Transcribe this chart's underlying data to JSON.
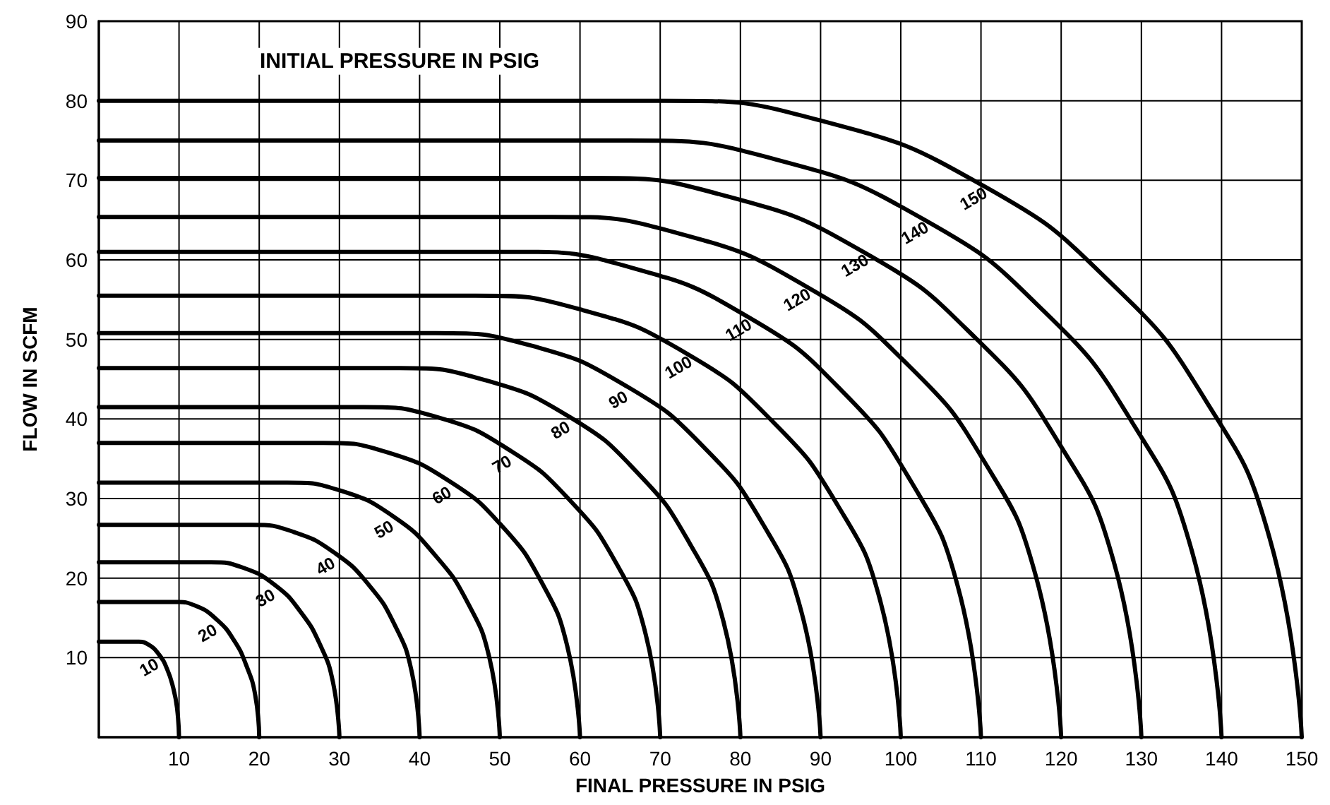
{
  "chart_data": {
    "type": "line",
    "xlabel": "FINAL PRESSURE IN PSIG",
    "ylabel": "FLOW IN SCFM",
    "xlim": [
      0,
      150
    ],
    "xticks": [
      10,
      20,
      30,
      40,
      50,
      60,
      70,
      80,
      90,
      100,
      110,
      120,
      130,
      140,
      150
    ],
    "ylim": [
      0,
      90
    ],
    "yticks": [
      10,
      20,
      30,
      40,
      50,
      60,
      70,
      80,
      90
    ],
    "grid": true,
    "marker": "none",
    "line_style": "solid",
    "series": [
      {
        "color": "#000000",
        "x": [
          0,
          5,
          6.25,
          7.5,
          8.5,
          9.25,
          9.75,
          10
        ],
        "values": [
          12,
          12,
          11.6,
          10.4,
          8.6,
          6.3,
          3.7,
          0
        ]
      },
      {
        "color": "#000000",
        "x": [
          0,
          9.5,
          12.1,
          14.8,
          16.9,
          18.4,
          19.5,
          20
        ],
        "values": [
          17,
          17,
          16.5,
          14.7,
          12.1,
          9,
          5.3,
          0
        ]
      },
      {
        "color": "#000000",
        "x": [
          0,
          14,
          18,
          22,
          25.2,
          27.6,
          29.2,
          30
        ],
        "values": [
          22,
          22,
          21.3,
          19.1,
          15.7,
          11.6,
          6.9,
          0
        ]
      },
      {
        "color": "#000000",
        "x": [
          0,
          19,
          24.3,
          29.5,
          33.7,
          36.9,
          39,
          40
        ],
        "values": [
          26.7,
          26.7,
          25.8,
          23.1,
          19.1,
          14.1,
          8.3,
          0
        ]
      },
      {
        "color": "#000000",
        "x": [
          0,
          23.5,
          30.1,
          36.8,
          42,
          46,
          48.7,
          50
        ],
        "values": [
          32,
          32,
          31,
          27.7,
          22.8,
          16.9,
          10,
          0
        ]
      },
      {
        "color": "#000000",
        "x": [
          0,
          28,
          36,
          44,
          50.4,
          55.2,
          58.4,
          60
        ],
        "values": [
          37,
          37,
          35.8,
          32,
          26.4,
          19.5,
          11.5,
          0
        ]
      },
      {
        "color": "#000000",
        "x": [
          0,
          33,
          42.3,
          51.5,
          58.9,
          64.5,
          68.2,
          70
        ],
        "values": [
          41.5,
          41.5,
          40.2,
          35.9,
          29.6,
          21.9,
          12.9,
          0
        ]
      },
      {
        "color": "#000000",
        "x": [
          0,
          37.5,
          48.1,
          58.8,
          67.3,
          73.6,
          77.9,
          80
        ],
        "values": [
          46.4,
          46.4,
          44.9,
          40.2,
          33.1,
          24.5,
          14.5,
          0
        ]
      },
      {
        "color": "#000000",
        "x": [
          0,
          42,
          54,
          66,
          75.6,
          82.8,
          87.6,
          90
        ],
        "values": [
          50.8,
          50.8,
          49.2,
          44,
          36.3,
          26.8,
          15.8,
          0
        ]
      },
      {
        "color": "#000000",
        "x": [
          0,
          47,
          60.3,
          73.5,
          84.1,
          92.1,
          97.4,
          100
        ],
        "values": [
          55.5,
          55.5,
          53.7,
          48.1,
          39.6,
          29.2,
          17.3,
          0
        ]
      },
      {
        "color": "#000000",
        "x": [
          0,
          52,
          66.5,
          81,
          92.6,
          101.3,
          107.1,
          110
        ],
        "values": [
          61,
          61,
          59,
          52.8,
          43.6,
          32.1,
          19,
          0
        ]
      },
      {
        "color": "#000000",
        "x": [
          0,
          56.5,
          72.4,
          88.3,
          101,
          110.5,
          116.8,
          120
        ],
        "values": [
          65.4,
          65.4,
          63.3,
          56.6,
          46.7,
          34.5,
          20.4,
          0
        ]
      },
      {
        "color": "#000000",
        "x": [
          0,
          61,
          78.3,
          95.5,
          109.3,
          119.7,
          126.6,
          130
        ],
        "values": [
          70.3,
          70.3,
          68,
          60.9,
          50.2,
          37,
          21.9,
          0
        ]
      },
      {
        "color": "#000000",
        "x": [
          0,
          66,
          84.5,
          103,
          117.8,
          128.9,
          136.3,
          140
        ],
        "values": [
          75,
          75,
          72.6,
          65,
          53.6,
          39.5,
          23.4,
          0
        ]
      },
      {
        "color": "#000000",
        "x": [
          0,
          70.5,
          90.4,
          110.3,
          126.2,
          138.1,
          146,
          150
        ],
        "values": [
          80,
          80,
          77.4,
          69.3,
          57.1,
          42.2,
          25,
          0
        ]
      }
    ],
    "annotations": [
      {
        "text": "10",
        "x": 7.5,
        "y": 10.4
      },
      {
        "text": "20",
        "x": 14.8,
        "y": 14.7
      },
      {
        "text": "30",
        "x": 22,
        "y": 19.1
      },
      {
        "text": "40",
        "x": 29.5,
        "y": 23.1
      },
      {
        "text": "50",
        "x": 36.8,
        "y": 27.7
      },
      {
        "text": "60",
        "x": 44,
        "y": 32
      },
      {
        "text": "70",
        "x": 51.5,
        "y": 35.9
      },
      {
        "text": "80",
        "x": 58.8,
        "y": 40.2
      },
      {
        "text": "90",
        "x": 66,
        "y": 44
      },
      {
        "text": "100",
        "x": 73.5,
        "y": 48.1
      },
      {
        "text": "110",
        "x": 81,
        "y": 52.8
      },
      {
        "text": "120",
        "x": 88.3,
        "y": 56.6
      },
      {
        "text": "130",
        "x": 95.5,
        "y": 60.9
      },
      {
        "text": "140",
        "x": 103,
        "y": 65
      },
      {
        "text": "150",
        "x": 110.3,
        "y": 69.3
      },
      "INITIAL PRESSURE IN PSIG"
    ]
  }
}
